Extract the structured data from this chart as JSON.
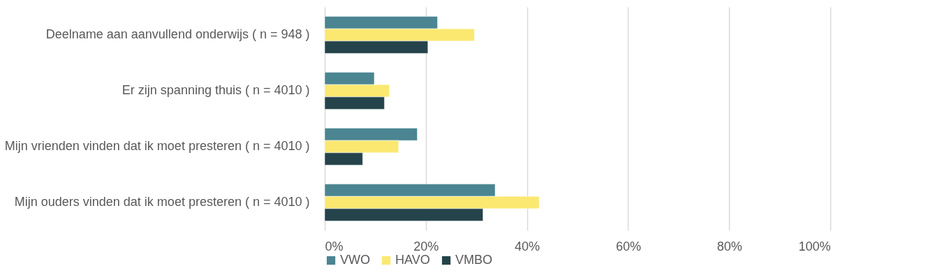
{
  "chart_data": {
    "type": "bar",
    "orientation": "horizontal",
    "categories": [
      "Deelname aan aanvullend onderwijs ( n = 948 )",
      "Er zijn spanning thuis ( n = 4010 )",
      "Mijn vrienden vinden dat ik moet presteren ( n = 4010 )",
      "Mijn ouders vinden dat ik moet presteren ( n = 4010 )"
    ],
    "series": [
      {
        "name": "VWO",
        "color": "#4a8591",
        "values": [
          22.3,
          9.8,
          18.3,
          33.7
        ]
      },
      {
        "name": "HAVO",
        "color": "#fbe870",
        "values": [
          29.6,
          12.8,
          14.6,
          42.4
        ]
      },
      {
        "name": "VMBO",
        "color": "#25434a",
        "values": [
          20.4,
          11.8,
          7.5,
          31.3
        ]
      }
    ],
    "xlim": [
      0,
      100
    ],
    "xticks": [
      {
        "value": 0,
        "label": "0%"
      },
      {
        "value": 20,
        "label": "20%"
      },
      {
        "value": 40,
        "label": "40%"
      },
      {
        "value": 60,
        "label": "60%"
      },
      {
        "value": 80,
        "label": "80%"
      },
      {
        "value": 100,
        "label": "100%"
      }
    ],
    "grid": "x",
    "legend": "bottom"
  }
}
